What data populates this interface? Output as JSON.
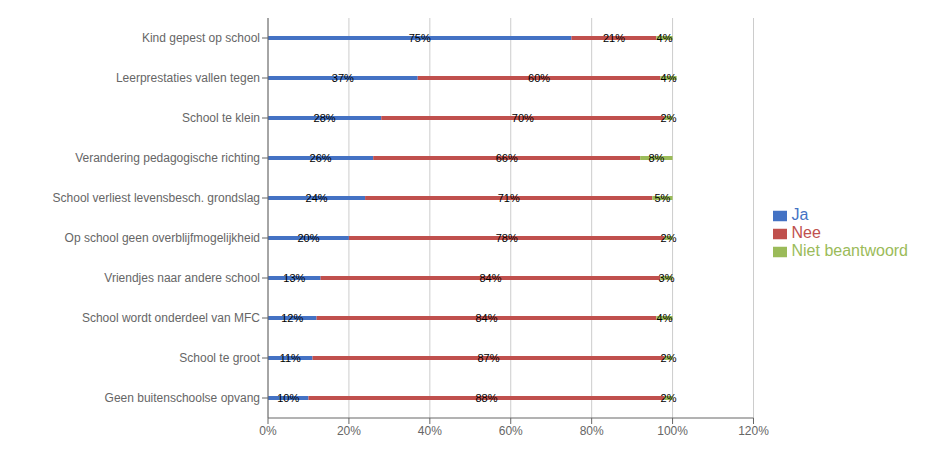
{
  "chart_data": {
    "type": "bar",
    "orientation": "horizontal",
    "stacked": true,
    "data_labels": true,
    "grid": true,
    "legend": "right",
    "categories": [
      "Geen buitenschoolse opvang",
      "School te groot",
      "School wordt onderdeel van MFC",
      "Vriendjes naar andere school",
      "Op school geen overblijfmogelijkheid",
      "School verliest levensbesch. grondslag",
      "Verandering pedagogische richting",
      "School  te klein",
      "Leerprestaties vallen tegen",
      "Kind gepest op school"
    ],
    "series": [
      {
        "name": "Ja",
        "color": "#4472C4",
        "values": [
          10,
          11,
          12,
          13,
          20,
          24,
          26,
          28,
          37,
          75
        ],
        "value_labels": [
          "10%",
          "11%",
          "12%",
          "13%",
          "20%",
          "24%",
          "26%",
          "28%",
          "37%",
          "75%"
        ]
      },
      {
        "name": "Nee",
        "color": "#C0504D",
        "values": [
          88,
          87,
          84,
          84,
          78,
          71,
          66,
          70,
          60,
          21
        ],
        "value_labels": [
          "88%",
          "87%",
          "84%",
          "84%",
          "78%",
          "71%",
          "66%",
          "70%",
          "60%",
          "21%"
        ]
      },
      {
        "name": "Niet beantwoord",
        "color": "#9BBB59",
        "values": [
          2,
          2,
          4,
          3,
          2,
          5,
          8,
          2,
          4,
          4
        ],
        "value_labels": [
          "2%",
          "2%",
          "4%",
          "3%",
          "2%",
          "5%",
          "8%",
          "2%",
          "4%",
          "4%"
        ]
      }
    ],
    "xlim": [
      0,
      120
    ],
    "xticks": [
      {
        "value": 0,
        "label": "0%"
      },
      {
        "value": 20,
        "label": "20%"
      },
      {
        "value": 40,
        "label": "40%"
      },
      {
        "value": 60,
        "label": "60%"
      },
      {
        "value": 80,
        "label": "80%"
      },
      {
        "value": 100,
        "label": "100%"
      },
      {
        "value": 120,
        "label": "120%"
      }
    ]
  }
}
